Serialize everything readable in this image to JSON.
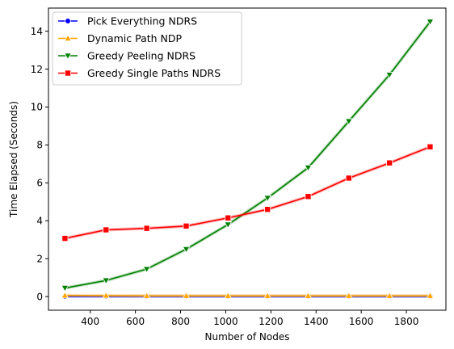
{
  "chart_data": {
    "type": "line",
    "xlabel": "Number of Nodes",
    "ylabel": "Time Elapsed (Seconds)",
    "xlim": [
      215,
      1975
    ],
    "ylim": [
      -0.72,
      15.22
    ],
    "xticks": [
      400,
      600,
      800,
      1000,
      1200,
      1400,
      1600,
      1800
    ],
    "yticks": [
      0,
      2,
      4,
      6,
      8,
      10,
      12,
      14
    ],
    "grid": false,
    "legend_position": "top-left",
    "x": [
      288,
      470,
      650,
      825,
      1010,
      1185,
      1365,
      1545,
      1725,
      1905
    ],
    "series": [
      {
        "name": "Pick Everything NDRS",
        "color": "#0000ff",
        "marker": "circle",
        "values": [
          0.01,
          0.01,
          0.01,
          0.01,
          0.01,
          0.01,
          0.01,
          0.01,
          0.01,
          0.01
        ]
      },
      {
        "name": "Dynamic Path NDP",
        "color": "#ffa500",
        "marker": "triangle-up",
        "values": [
          0.06,
          0.05,
          0.04,
          0.04,
          0.04,
          0.04,
          0.04,
          0.04,
          0.04,
          0.04
        ]
      },
      {
        "name": "Greedy Peeling NDRS",
        "color": "#008000",
        "marker": "triangle-down",
        "values": [
          0.45,
          0.85,
          1.45,
          2.5,
          3.8,
          5.2,
          6.8,
          9.25,
          11.7,
          14.5
        ]
      },
      {
        "name": "Greedy Single Paths NDRS",
        "color": "#ff0000",
        "marker": "square",
        "values": [
          3.07,
          3.52,
          3.6,
          3.72,
          4.15,
          4.6,
          5.28,
          6.25,
          7.05,
          7.9
        ]
      }
    ]
  }
}
